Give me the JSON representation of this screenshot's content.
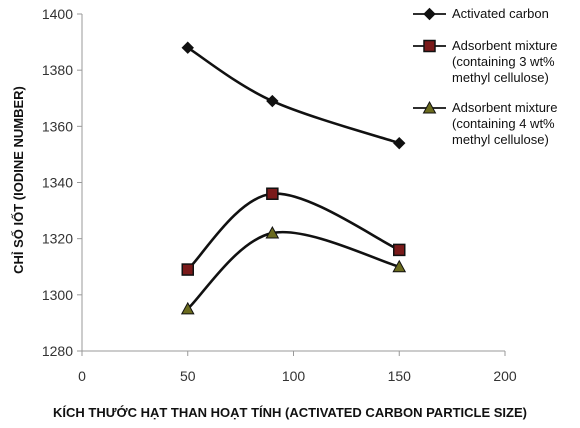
{
  "chart_data": {
    "type": "line",
    "x": [
      50,
      90,
      150
    ],
    "series": [
      {
        "name": "Activated carbon",
        "values": [
          1388,
          1369,
          1354
        ],
        "marker": "diamond",
        "curve": "smooth",
        "color": "#111111",
        "marker_fill": "#111111"
      },
      {
        "name": "Adsorbent mixture (containing 3 wt% methyl cellulose)",
        "name_lines": [
          "Adsorbent mixture",
          "(containing 3 wt%",
          "methyl cellulose)"
        ],
        "values": [
          1309,
          1336,
          1316
        ],
        "marker": "square",
        "curve": "smooth",
        "color": "#111111",
        "marker_fill": "#7a1a1a"
      },
      {
        "name": "Adsorbent mixture (containing 4 wt% methyl cellulose)",
        "name_lines": [
          "Adsorbent mixture",
          "(containing 4 wt%",
          "methyl cellulose)"
        ],
        "values": [
          1295,
          1322,
          1310
        ],
        "marker": "triangle",
        "curve": "smooth",
        "color": "#111111",
        "marker_fill": "#6b6b1e"
      }
    ],
    "xlabel": "KÍCH THƯỚC HẠT THAN HOẠT TÍNH (ACTIVATED CARBON PARTICLE SIZE)",
    "ylabel": "CHỈ SỐ IỐT (IODINE NUMBER)",
    "xlim": [
      0,
      200
    ],
    "ylim": [
      1280,
      1400
    ],
    "xticks": [
      0,
      50,
      100,
      150,
      200
    ],
    "yticks": [
      1280,
      1300,
      1320,
      1340,
      1360,
      1380,
      1400
    ],
    "grid": false,
    "legend_position": "top-right"
  }
}
